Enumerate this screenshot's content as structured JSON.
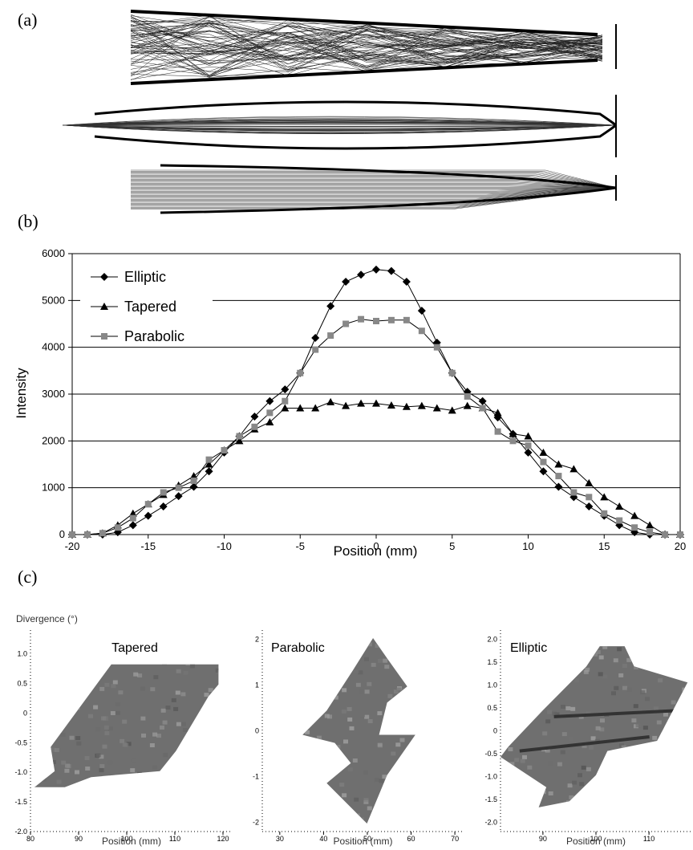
{
  "panels": {
    "a": "(a)",
    "b": "(b)",
    "c": "(c)"
  },
  "chart_data": [
    {
      "type": "line",
      "xlabel": "Position (mm)",
      "ylabel": "Intensity",
      "xlim": [
        -20,
        20
      ],
      "ylim": [
        0,
        6000
      ],
      "xticks": [
        -20,
        -15,
        -10,
        -5,
        0,
        5,
        10,
        15,
        20
      ],
      "yticks": [
        0,
        1000,
        2000,
        3000,
        4000,
        5000,
        6000
      ],
      "grid": "horizontal",
      "legend_position": "top-left",
      "series": [
        {
          "name": "Elliptic",
          "marker": "diamond",
          "color": "#000000",
          "x": [
            -20,
            -19,
            -18,
            -17,
            -16,
            -15,
            -14,
            -13,
            -12,
            -11,
            -10,
            -9,
            -8,
            -7,
            -6,
            -5,
            -4,
            -3,
            -2,
            -1,
            0,
            1,
            2,
            3,
            4,
            5,
            6,
            7,
            8,
            9,
            10,
            11,
            12,
            13,
            14,
            15,
            16,
            17,
            18,
            19,
            20
          ],
          "y": [
            0,
            0,
            0,
            50,
            200,
            400,
            600,
            820,
            1020,
            1350,
            1750,
            2100,
            2520,
            2850,
            3100,
            3450,
            4200,
            4880,
            5400,
            5550,
            5660,
            5630,
            5400,
            4780,
            4100,
            3450,
            3050,
            2850,
            2500,
            2150,
            1750,
            1350,
            1020,
            800,
            600,
            400,
            200,
            50,
            0,
            0,
            0
          ]
        },
        {
          "name": "Tapered",
          "marker": "triangle",
          "color": "#000000",
          "x": [
            -20,
            -19,
            -18,
            -17,
            -16,
            -15,
            -14,
            -13,
            -12,
            -11,
            -10,
            -9,
            -8,
            -7,
            -6,
            -5,
            -4,
            -3,
            -2,
            -1,
            0,
            1,
            2,
            3,
            4,
            5,
            6,
            7,
            8,
            9,
            10,
            11,
            12,
            13,
            14,
            15,
            16,
            17,
            18,
            19,
            20
          ],
          "y": [
            0,
            0,
            30,
            200,
            450,
            650,
            850,
            1050,
            1250,
            1500,
            1800,
            2000,
            2250,
            2400,
            2700,
            2700,
            2700,
            2830,
            2750,
            2800,
            2800,
            2760,
            2730,
            2750,
            2700,
            2650,
            2750,
            2700,
            2600,
            2150,
            2100,
            1750,
            1500,
            1400,
            1100,
            800,
            600,
            400,
            200,
            0,
            0
          ]
        },
        {
          "name": "Parabolic",
          "marker": "square",
          "color": "#888888",
          "x": [
            -20,
            -19,
            -18,
            -17,
            -16,
            -15,
            -14,
            -13,
            -12,
            -11,
            -10,
            -9,
            -8,
            -7,
            -6,
            -5,
            -4,
            -3,
            -2,
            -1,
            0,
            1,
            2,
            3,
            4,
            5,
            6,
            7,
            8,
            9,
            10,
            11,
            12,
            13,
            14,
            15,
            16,
            17,
            18,
            19,
            20
          ],
          "y": [
            0,
            0,
            30,
            150,
            350,
            650,
            900,
            1000,
            1150,
            1600,
            1800,
            2100,
            2300,
            2600,
            2850,
            3450,
            3950,
            4250,
            4500,
            4600,
            4560,
            4580,
            4580,
            4350,
            4000,
            3450,
            2950,
            2700,
            2200,
            2000,
            1900,
            1550,
            1250,
            900,
            800,
            450,
            300,
            150,
            50,
            0,
            0
          ]
        }
      ]
    },
    {
      "type": "heatmap",
      "title": "Tapered",
      "ylabel": "Divergence (°)",
      "xlabel": "Position (mm)",
      "xticks": [
        80,
        90,
        100,
        110,
        120
      ],
      "yticks": [
        "-2.0",
        "-1.5",
        "-1.0",
        "-0.5",
        "0",
        "0.5",
        "1.0"
      ],
      "xlim": [
        80,
        122
      ],
      "ylim": [
        -2.0,
        1.4
      ]
    },
    {
      "type": "heatmap",
      "title": "Parabolic",
      "xlabel": "Position (mm)",
      "xticks": [
        30,
        40,
        50,
        60,
        70
      ],
      "yticks": [
        "-2",
        "-1",
        "0",
        "1",
        "2"
      ],
      "xlim": [
        26,
        72
      ],
      "ylim": [
        -2.2,
        2.2
      ]
    },
    {
      "type": "heatmap",
      "title": "Elliptic",
      "xlabel": "Position (mm)",
      "xticks": [
        90,
        100,
        110
      ],
      "yticks": [
        "-2.0",
        "-1.5",
        "-1.0",
        "-0.5",
        "0",
        "0.5",
        "1.0",
        "1.5",
        "2.0"
      ],
      "xlim": [
        82,
        118
      ],
      "ylim": [
        -2.2,
        2.2
      ]
    }
  ]
}
